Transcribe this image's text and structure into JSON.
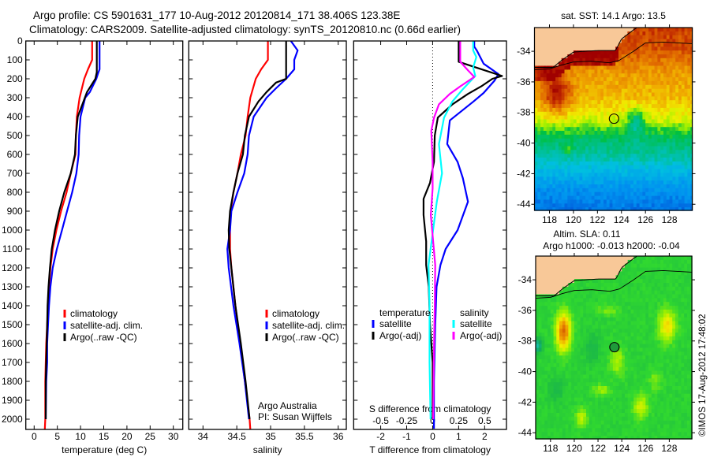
{
  "header": {
    "line1": "Argo profile: CS 5901631_177 10-Aug-2012 20120814_171 38.406S 123.38E",
    "line2": "Climatology: CARS2009. Satellite-adjusted climatology: synTS_20120810.nc (0.66d earlier)"
  },
  "annotations": {
    "credit1": "Argo Australia",
    "credit2": "PI: Susan Wijffels",
    "copyright": "©IMOS 17-Aug-2012 17:48:02"
  },
  "chart_data": [
    {
      "id": "temperature",
      "type": "line",
      "xlabel": "temperature (deg C)",
      "ylabel": "",
      "xlim": [
        -1.8,
        32.04
      ],
      "ylim": [
        2054,
        0
      ],
      "xticks": [
        "0",
        "5",
        "10",
        "15",
        "20",
        "25",
        "30"
      ],
      "yticks": [
        "0",
        "100",
        "200",
        "300",
        "400",
        "500",
        "600",
        "700",
        "800",
        "900",
        "1000",
        "1100",
        "1200",
        "1300",
        "1400",
        "1500",
        "1600",
        "1700",
        "1800",
        "1900",
        "2000"
      ],
      "legend": [
        "climatology",
        "satellite-adj. clim.",
        "Argo(..raw -QC)"
      ],
      "series": [
        {
          "name": "climatology",
          "color": "#ff0000",
          "depth": [
            0,
            100,
            150,
            200,
            300,
            400,
            500,
            600,
            700,
            800,
            900,
            1000,
            1100,
            1200,
            1300,
            1400,
            1500,
            1600,
            1800,
            2000,
            2054
          ],
          "values": [
            12.5,
            12.5,
            11.6,
            10.8,
            9.8,
            9.2,
            9.0,
            8.9,
            7.9,
            7.0,
            5.8,
            4.8,
            4.0,
            3.5,
            3.2,
            3.0,
            2.8,
            2.6,
            2.4,
            2.4,
            2.3
          ]
        },
        {
          "name": "satellite-adj. clim.",
          "color": "#0000ff",
          "depth": [
            0,
            150,
            170,
            200,
            270,
            300,
            400,
            500,
            600,
            700,
            800,
            900,
            1000,
            1100,
            1200,
            1300,
            1400,
            1500,
            1600,
            1700,
            1800,
            2000
          ],
          "values": [
            14.1,
            14.1,
            13.8,
            13.4,
            12.0,
            11.0,
            10.0,
            9.7,
            9.6,
            9.1,
            8.2,
            7.1,
            6.0,
            4.9,
            4.0,
            3.5,
            3.2,
            3.0,
            2.8,
            2.8,
            2.6,
            2.5
          ]
        },
        {
          "name": "Argo(..raw -QC)",
          "color": "#000000",
          "depth": [
            0,
            165,
            200,
            270,
            400,
            500,
            600,
            700,
            800,
            900,
            1000,
            1100,
            1200,
            1300,
            1400,
            1500,
            1600,
            1800,
            2000
          ],
          "values": [
            13.5,
            13.5,
            13.2,
            11.4,
            9.4,
            9.0,
            8.8,
            7.9,
            6.5,
            5.4,
            4.5,
            3.8,
            3.4,
            3.1,
            2.9,
            2.8,
            2.7,
            2.5,
            2.5
          ]
        }
      ]
    },
    {
      "id": "salinity",
      "type": "line",
      "xlabel": "salinity",
      "xlim": [
        33.79,
        36.12
      ],
      "ylim": [
        2054,
        0
      ],
      "xticks": [
        "34",
        "34.5",
        "35",
        "35.5",
        "36"
      ],
      "legend": [
        "climatology",
        "satellite-adj. clim.",
        "Argo(..raw -QC)"
      ],
      "series": [
        {
          "name": "climatology",
          "color": "#ff0000",
          "depth": [
            0,
            100,
            150,
            200,
            300,
            400,
            500,
            600,
            700,
            800,
            900,
            1000,
            1100,
            1200,
            1400,
            1600,
            1800,
            2000,
            2054
          ],
          "values": [
            34.96,
            34.96,
            34.86,
            34.78,
            34.7,
            34.66,
            34.63,
            34.56,
            34.51,
            34.45,
            34.41,
            34.4,
            34.4,
            34.42,
            34.48,
            34.55,
            34.62,
            34.69,
            34.7
          ]
        },
        {
          "name": "satellite-adj. clim.",
          "color": "#0000ff",
          "depth": [
            0,
            50,
            100,
            150,
            200,
            250,
            300,
            400,
            500,
            600,
            700,
            800,
            900,
            1000,
            1100,
            1200,
            1400,
            1600,
            1800,
            2000
          ],
          "values": [
            35.3,
            35.4,
            35.35,
            35.35,
            35.23,
            35.08,
            34.94,
            34.75,
            34.68,
            34.66,
            34.61,
            34.51,
            34.42,
            34.4,
            34.36,
            34.38,
            34.45,
            34.54,
            34.62,
            34.68
          ]
        },
        {
          "name": "Argo(..raw -QC)",
          "color": "#000000",
          "depth": [
            0,
            200,
            220,
            270,
            320,
            400,
            500,
            600,
            700,
            800,
            900,
            1000,
            1100,
            1200,
            1400,
            1600,
            1800,
            2000
          ],
          "values": [
            35.23,
            35.23,
            35.08,
            34.94,
            34.82,
            34.68,
            34.62,
            34.59,
            34.51,
            34.45,
            34.4,
            34.38,
            34.39,
            34.42,
            34.48,
            34.56,
            34.63,
            34.69
          ]
        }
      ]
    },
    {
      "id": "difference",
      "type": "line",
      "xlabel": "T difference from climatology",
      "x2label": "S difference from climatology",
      "xlim": [
        -3.04,
        2.84
      ],
      "x2lim": [
        -0.76,
        0.71
      ],
      "ylim": [
        2054,
        0
      ],
      "xticks": [
        "-2",
        "-1",
        "0",
        "1",
        "2"
      ],
      "x2ticks": [
        "-0.5",
        "-0.25",
        "0",
        "0.25",
        "0.5"
      ],
      "legend": {
        "temp_header": "temperature",
        "sal_header": "salinity",
        "temp_items": [
          "satellite",
          "Argo(-adj)"
        ],
        "sal_items": [
          "satellite",
          "Argo(-adj)"
        ]
      },
      "series": [
        {
          "name": "T satellite",
          "axis": "T",
          "color": "#0000ff",
          "depth": [
            0,
            30,
            50,
            120,
            175,
            210,
            275,
            320,
            420,
            545,
            640,
            725,
            850,
            1000,
            1100,
            1185,
            1300,
            1500,
            1800,
            2050
          ],
          "values": [
            1.6,
            1.6,
            1.7,
            1.96,
            2.53,
            2.38,
            1.96,
            1.57,
            0.66,
            0.56,
            0.96,
            1.16,
            1.36,
            0.96,
            0.5,
            0.3,
            0.15,
            0.1,
            0.05,
            0.05
          ]
        },
        {
          "name": "T Argo(-adj)",
          "axis": "T",
          "color": "#000000",
          "depth": [
            0,
            110,
            140,
            185,
            200,
            240,
            280,
            335,
            405,
            500,
            640,
            750,
            835,
            920,
            1060,
            1185,
            1300,
            1500,
            1700,
            2000
          ],
          "values": [
            1.0,
            1.0,
            1.66,
            2.67,
            2.3,
            1.87,
            1.36,
            0.76,
            0.2,
            0.08,
            0.05,
            -0.1,
            -0.35,
            -0.35,
            -0.25,
            -0.25,
            -0.15,
            -0.1,
            0,
            0
          ]
        },
        {
          "name": "S satellite",
          "axis": "S",
          "color": "#00ffff",
          "depth": [
            0,
            50,
            85,
            140,
            185,
            255,
            320,
            405,
            545,
            700,
            850,
            1060,
            1185,
            1400,
            1700,
            2000
          ],
          "values": [
            0.39,
            0.39,
            0.42,
            0.39,
            0.41,
            0.29,
            0.19,
            0.11,
            0.06,
            0.09,
            0.04,
            -0.01,
            -0.04,
            -0.03,
            -0.03,
            -0.02
          ]
        },
        {
          "name": "S Argo(-adj)",
          "axis": "S",
          "color": "#ff00ff",
          "depth": [
            0,
            110,
            155,
            190,
            240,
            280,
            335,
            405,
            475,
            640,
            780,
            920,
            1185,
            1400,
            1700,
            2000
          ],
          "values": [
            0.265,
            0.265,
            0.34,
            0.4,
            0.265,
            0.165,
            0.06,
            0.013,
            -0.013,
            0,
            0,
            -0.018,
            0.025,
            0.02,
            0.01,
            0.005
          ]
        }
      ]
    },
    {
      "id": "sst-map",
      "type": "heatmap",
      "title": "sat. SST: 14.1 Argo: 13.5",
      "lonlim": [
        116.75,
        129.9
      ],
      "latlim": [
        -44.4,
        -32.45
      ],
      "xticks": [
        "118",
        "120",
        "122",
        "124",
        "126",
        "128"
      ],
      "yticks": [
        "-34",
        "-36",
        "-38",
        "-40",
        "-42",
        "-44"
      ],
      "argo_position": {
        "lon": 123.38,
        "lat": -38.406
      },
      "colors": {
        "land": "#f8c898"
      }
    },
    {
      "id": "sla-map",
      "type": "heatmap",
      "title1": "Altim. SLA: 0.11",
      "title2": "Argo h1000: -0.013 h2000: -0.04",
      "lonlim": [
        116.75,
        129.9
      ],
      "latlim": [
        -44.4,
        -32.45
      ],
      "xticks": [
        "118",
        "120",
        "122",
        "124",
        "126",
        "128"
      ],
      "yticks": [
        "-34",
        "-36",
        "-38",
        "-40",
        "-42",
        "-44"
      ],
      "argo_position": {
        "lon": 123.38,
        "lat": -38.406
      },
      "colors": {
        "land": "#f8c898",
        "marker": "#1f9a3a"
      }
    }
  ]
}
